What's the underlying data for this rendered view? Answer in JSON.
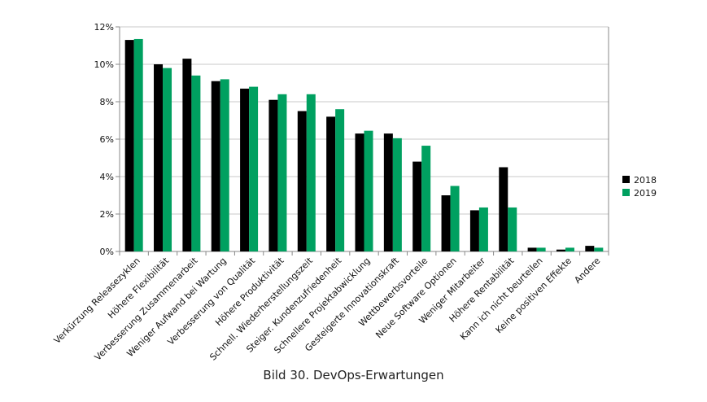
{
  "caption": "Bild 30. DevOps-Erwartungen",
  "chart_data": {
    "type": "bar",
    "categories": [
      "Verkürzung Releasezyklen",
      "Höhere Flexibilität",
      "Verbesserung Zusammenarbeit",
      "Weniger Aufwand bei Wartung",
      "Verbesserung von Qualität",
      "Höhere Produktivität",
      "Schnell. Wiederherstellungszeit",
      "Steiger. Kundenzufriedenheit",
      "Schnellere Projektabwicklung",
      "Gesteigerte Innovationskraft",
      "Wettbewerbsvorteile",
      "Neue Software Optionen",
      "Weniger Mitarbeiter",
      "Höhere Rentabilität",
      "Kann ich nicht beurteilen",
      "Keine positiven Effekte",
      "Andere"
    ],
    "series": [
      {
        "name": "2018",
        "color": "#000000",
        "values": [
          11.3,
          10.0,
          10.3,
          9.1,
          8.7,
          8.1,
          7.5,
          7.2,
          6.3,
          6.3,
          4.8,
          3.0,
          2.2,
          4.5,
          0.2,
          0.1,
          0.3
        ]
      },
      {
        "name": "2019",
        "color": "#00a060",
        "values": [
          11.35,
          9.8,
          9.4,
          9.2,
          8.8,
          8.4,
          8.4,
          7.6,
          6.45,
          6.05,
          5.65,
          3.5,
          2.35,
          2.35,
          0.2,
          0.2,
          0.2
        ]
      }
    ],
    "yticks": [
      "0%",
      "2%",
      "4%",
      "6%",
      "8%",
      "10%",
      "12%"
    ],
    "ylim": [
      0,
      12
    ],
    "grid": true,
    "legend": "right",
    "xlabel": "",
    "ylabel": ""
  }
}
